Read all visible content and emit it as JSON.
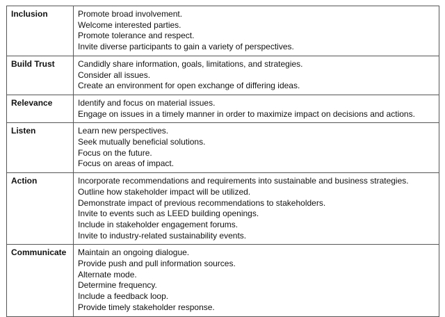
{
  "rows": [
    {
      "label": "Inclusion",
      "items": [
        "Promote broad involvement.",
        "Welcome interested parties.",
        "Promote tolerance and respect.",
        "Invite diverse participants to gain a variety of perspectives."
      ]
    },
    {
      "label": "Build Trust",
      "items": [
        "Candidly share information, goals, limitations, and strategies.",
        "Consider all issues.",
        "Create an environment for open exchange of differing ideas."
      ]
    },
    {
      "label": "Relevance",
      "items": [
        "Identify and focus on material issues.",
        "Engage on issues in a timely manner in order to maximize impact on decisions and actions."
      ]
    },
    {
      "label": "Listen",
      "items": [
        "Learn new perspectives.",
        "Seek mutually beneficial solutions.",
        "Focus on the future.",
        "Focus on areas of impact."
      ]
    },
    {
      "label": "Action",
      "items": [
        "Incorporate recommendations and requirements into sustainable and business strategies.",
        "Outline how stakeholder impact will be utilized.",
        "Demonstrate impact of previous recommendations to stakeholders.",
        "Invite to events such as LEED building openings.",
        "Include in stakeholder engagement forums.",
        "Invite to industry-related sustainability events."
      ]
    },
    {
      "label": "Communicate",
      "items": [
        "Maintain an ongoing dialogue.",
        "Provide push and pull information sources.",
        "Alternate mode.",
        "Determine frequency.",
        "Include a feedback loop.",
        "Provide timely stakeholder response."
      ]
    }
  ]
}
